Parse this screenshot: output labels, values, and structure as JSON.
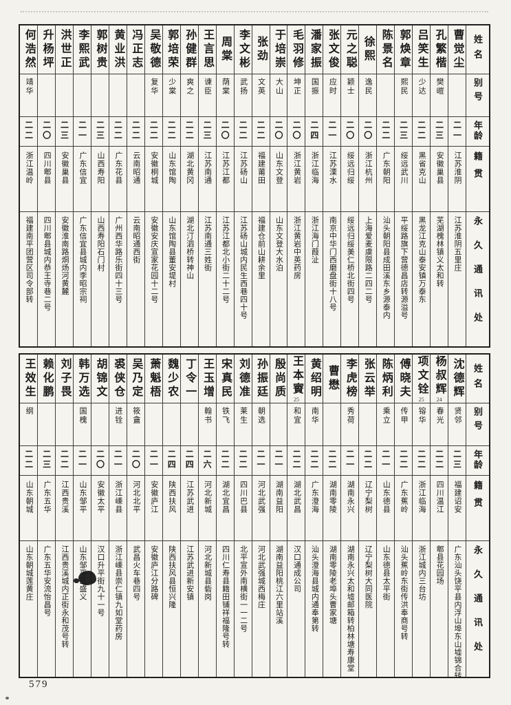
{
  "page_label": "579",
  "header_labels": {
    "name": "姓名",
    "alias": "别号",
    "age": "年龄",
    "origin": "籍贯",
    "address": "永久通讯处"
  },
  "tables": [
    {
      "people": [
        {
          "name": "曹觉尘",
          "alias": "",
          "age": "二一",
          "origin": "江苏淮阴",
          "address": "江苏淮阴五里庄"
        },
        {
          "name": "孔繁楷",
          "alias": "樊嵦",
          "age": "二三",
          "origin": "安徽巢县",
          "address": "芜湖槐林镇义太和转"
        },
        {
          "name": "吕笑生",
          "alias": "少达",
          "age": "二二",
          "origin": "黑省克山",
          "address": "黑龙江克山泰安镇万泰东"
        },
        {
          "name": "郭焕章",
          "alias": "熙民",
          "age": "二三",
          "origin": "绥远武川",
          "address": "平绥路旗下营德昌店转源溢号"
        },
        {
          "name": "陈景名",
          "alias": "",
          "age": "二二",
          "origin": "广东朝阳",
          "address": "汕头朝阳县成田溪东乡源泰内"
        },
        {
          "name": "徐熙",
          "alias": "逸民",
          "age": "二〇",
          "origin": "浙江杭州",
          "address": "上海爱麦虞限路二四二号"
        },
        {
          "name": "元之聪",
          "alias": "颖士",
          "age": "二〇",
          "origin": "绥远归绥",
          "address": "绥远归绥美仁桥北街四号"
        },
        {
          "name": "张文俊",
          "alias": "应时",
          "age": "二一",
          "origin": "江苏溧水",
          "address": "南京中华门西磨盘街十八号"
        },
        {
          "name": "潘家振",
          "alias": "国振",
          "age": "二四",
          "origin": "浙江临海",
          "address": "浙江海门葭沚"
        },
        {
          "name": "毛羽修",
          "alias": "坤正",
          "age": "二〇",
          "origin": "浙江黄岩",
          "address": "浙江黄岩中英药房"
        },
        {
          "name": "于培崇",
          "alias": "大山",
          "age": "二〇",
          "origin": "山东文登",
          "address": "山东文登大水泊"
        },
        {
          "name": "张劲",
          "alias": "文英",
          "age": "二二",
          "origin": "福建莆田",
          "address": "福建仓前山耕余里"
        },
        {
          "name": "李文彬",
          "alias": "武扬",
          "age": "二二",
          "origin": "江苏砀山",
          "address": "江苏砀山城内民生西巷四十号"
        },
        {
          "name": "周棠",
          "alias": "荫棠",
          "age": "二〇",
          "origin": "江苏江都",
          "address": "江苏江都北小街二十二号"
        },
        {
          "name": "王言思",
          "alias": "谏臣",
          "age": "二三",
          "origin": "江苏南通",
          "address": "江苏南通三姓街"
        },
        {
          "name": "孙健群",
          "alias": "爽之",
          "age": "二二",
          "origin": "湖北黄冈",
          "address": "湖北汀泗桥转神山"
        },
        {
          "name": "郭培荣",
          "alias": "少棠",
          "age": "二二",
          "origin": "山东馆陶",
          "address": "山东馆陶县董安堤村"
        },
        {
          "name": "吴敬德",
          "alias": "复华",
          "age": "二二",
          "origin": "安徽桐城",
          "address": "安徽安庆宣家花园十二号"
        },
        {
          "name": "冯正志",
          "alias": "",
          "age": "二二",
          "origin": "云南昭通",
          "address": "云南昭通西街"
        },
        {
          "name": "黄业洪",
          "alias": "",
          "age": "二二",
          "origin": "广东花县",
          "address": "广州西华路乐街四十三号"
        },
        {
          "name": "郭树贵",
          "alias": "",
          "age": "二三",
          "origin": "山西寿阳",
          "address": "山西寿阳石门村"
        },
        {
          "name": "李熙武",
          "alias": "",
          "age": "二一",
          "origin": "广东信宜",
          "address": "广东信宜县城内李昭宗祠"
        },
        {
          "name": "洪世正",
          "alias": "",
          "age": "二三",
          "origin": "安徽巢县",
          "address": "安徽淮南路烔炀河黄麓"
        },
        {
          "name": "升杨坪",
          "alias": "",
          "age": "二〇",
          "origin": "四川郫县",
          "address": "四川郫县城内恭王寺巷二号"
        },
        {
          "name": "何浩然",
          "alias": "靖华",
          "age": "二二",
          "origin": "浙江温岭",
          "address": "福建南平团营区司令部转"
        }
      ]
    },
    {
      "people": [
        {
          "name": "沈德辉",
          "alias": "贤邻",
          "age": "二三",
          "origin": "福建诏安",
          "address": "广东汕头饶平县内浮山埠东山墟锦合转"
        },
        {
          "name": "杨叔辉",
          "alias": "春光",
          "age": "二二",
          "origin": "四川温江",
          "address": "郫县花园场",
          "note": "24"
        },
        {
          "name": "项文铨",
          "alias": "镕华",
          "age": "二二",
          "origin": "浙江临海",
          "address": "浙江城内三台坊",
          "note": "25"
        },
        {
          "name": "傅晓夫",
          "alias": "传甲",
          "age": "二二",
          "origin": "广东蕉岭",
          "address": "汕头蕉岭东街传洪奉商号转"
        },
        {
          "name": "陈炳利",
          "alias": "乘立",
          "age": "二一",
          "origin": "山东德县",
          "address": "山东德县太平街"
        },
        {
          "name": "张云举",
          "alias": "",
          "age": "二二",
          "origin": "辽宁梨树",
          "address": "辽宁梨树大同医院"
        },
        {
          "name": "李虎榜",
          "alias": "秀荷",
          "age": "二一",
          "origin": "湖南永兴",
          "address": "湖南永兴太和墟邮箱转柏林塘寿康堂"
        },
        {
          "name": "曹懋",
          "alias": "",
          "age": "二二",
          "origin": "湖南零陵",
          "address": "湖南零陵老埠头曹家塘"
        },
        {
          "name": "黄绍明",
          "alias": "南华",
          "age": "二二",
          "origin": "广东澄海",
          "address": "汕头澄海县城内通奉第转"
        },
        {
          "name": "王本賨",
          "alias": "和宜",
          "age": "二二",
          "origin": "湖北武昌",
          "address": "汉口通成公司",
          "note": "25"
        },
        {
          "name": "殷尚质",
          "alias": "",
          "age": "二一",
          "origin": "湖南益阳",
          "address": "湖南益阳桃江六里站溪"
        },
        {
          "name": "孙振廷",
          "alias": "朝选",
          "age": "二一",
          "origin": "河北武强",
          "address": "河北武强城西梅庄"
        },
        {
          "name": "刘德准",
          "alias": "莱生",
          "age": "二二",
          "origin": "四川巴县",
          "address": "北平宣外南横街一一二号"
        },
        {
          "name": "宋真民",
          "alias": "铁飞",
          "age": "二二",
          "origin": "湖北宜昌",
          "address": "四川仁寿县籍田铺祥福隆号转"
        },
        {
          "name": "王玉增",
          "alias": "翰书",
          "age": "二六",
          "origin": "河北新城",
          "address": "河北新城县砦岗"
        },
        {
          "name": "丁令一",
          "alias": "",
          "age": "二四",
          "origin": "江苏武进",
          "address": "江苏武进新安镇"
        },
        {
          "name": "魏少农",
          "alias": "",
          "age": "二四",
          "origin": "陕西扶风",
          "address": "陕西扶风县恒兴隆"
        },
        {
          "name": "萧魁梧",
          "alias": "",
          "age": "二一",
          "origin": "安徽庐江",
          "address": "安徽庐江分路碑"
        },
        {
          "name": "吴乃定",
          "alias": "筱盦",
          "age": "二〇",
          "origin": "河北北平",
          "address": "武昌火车巷四号"
        },
        {
          "name": "裘侠仓",
          "alias": "进铨",
          "age": "二一",
          "origin": "浙江嵊县",
          "address": "浙江嵊县崇仁镇九如堂药房"
        },
        {
          "name": "胡锦文",
          "alias": "",
          "age": "二〇",
          "origin": "安徽太平",
          "address": "汉口升平街九十一号"
        },
        {
          "name": "韩万选",
          "alias": "国槐",
          "age": "二一",
          "origin": "山东邹平",
          "address": "山东邹平三盛义"
        },
        {
          "name": "刘子畏",
          "alias": "",
          "age": "二二",
          "origin": "江西贵溪",
          "address": "江西贵溪城内正街永和茂号转"
        },
        {
          "name": "赖化鹏",
          "alias": "",
          "age": "二三",
          "origin": "广东五华",
          "address": "广东五华安流怡昌号"
        },
        {
          "name": "王效生",
          "alias": "纲",
          "age": "二二",
          "origin": "山东朝城",
          "address": "山东朝城莲黄庄"
        }
      ]
    }
  ]
}
